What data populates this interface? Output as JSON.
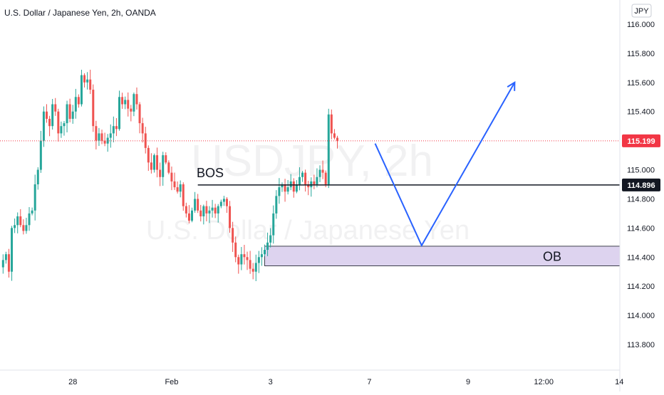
{
  "chart_data": {
    "type": "candlestick",
    "title": "U.S. Dollar / Japanese Yen, 2h, OANDA",
    "currency_badge": "JPY",
    "watermark": {
      "symbol": "USDJPY, 2h",
      "description": "U.S. Dollar / Japanese Yen"
    },
    "ylim": [
      113.6,
      116.1
    ],
    "y_ticks": [
      116.0,
      115.8,
      115.6,
      115.4,
      115.2,
      115.0,
      114.8,
      114.6,
      114.4,
      114.2,
      114.0,
      113.8
    ],
    "y_tick_labels": [
      "116.000",
      "115.800",
      "115.600",
      "115.400",
      "115.200",
      "115.000",
      "114.800",
      "114.600",
      "114.400",
      "114.200",
      "114.000",
      "113.800"
    ],
    "x_tick_labels": [
      {
        "label": "28",
        "bar": 24
      },
      {
        "label": "Feb",
        "bar": 58
      },
      {
        "label": "3",
        "bar": 92
      },
      {
        "label": "7",
        "bar": 126
      },
      {
        "label": "9",
        "bar": 160
      },
      {
        "label": "12:00",
        "bar": 186
      },
      {
        "label": "14",
        "bar": 212
      }
    ],
    "current_price": {
      "value": 115.199,
      "label": "115.199",
      "color": "#f23645"
    },
    "bos_level": {
      "value": 114.896,
      "label": "114.896",
      "text": "BOS",
      "from_bar": 67
    },
    "order_block": {
      "low": 114.34,
      "high": 114.475,
      "from_bar": 90,
      "text": "OB",
      "color": "#d1c4e9"
    },
    "projection": {
      "color": "#2962ff",
      "points": [
        [
          128,
          115.18
        ],
        [
          144,
          114.48
        ],
        [
          176,
          115.6
        ]
      ]
    },
    "colors": {
      "up": "#26a69a",
      "down": "#ef5350"
    },
    "close_series": [
      114.38,
      114.42,
      114.3,
      114.6,
      114.62,
      114.68,
      114.62,
      114.58,
      114.62,
      114.7,
      114.72,
      114.9,
      115.0,
      115.2,
      115.4,
      115.35,
      115.3,
      115.45,
      115.4,
      115.25,
      115.3,
      115.32,
      115.45,
      115.35,
      115.4,
      115.5,
      115.45,
      115.65,
      115.6,
      115.62,
      115.55,
      115.3,
      115.2,
      115.25,
      115.2,
      115.18,
      115.22,
      115.25,
      115.3,
      115.28,
      115.5,
      115.45,
      115.48,
      115.42,
      115.4,
      115.52,
      115.45,
      115.32,
      115.25,
      115.15,
      115.05,
      115.0,
      115.1,
      115.0,
      114.95,
      115.1,
      115.05,
      114.98,
      114.92,
      114.88,
      114.85,
      114.9,
      114.75,
      114.7,
      114.65,
      114.72,
      114.8,
      114.72,
      114.68,
      114.75,
      114.7,
      114.72,
      114.74,
      114.7,
      114.75,
      114.78,
      114.8,
      114.75,
      114.6,
      114.5,
      114.4,
      114.35,
      114.42,
      114.4,
      114.38,
      114.32,
      114.3,
      114.36,
      114.4,
      114.42,
      114.45,
      114.5,
      114.55,
      114.7,
      114.82,
      114.88,
      114.9,
      114.85,
      114.88,
      114.92,
      114.85,
      114.9,
      114.95,
      114.98,
      114.9,
      114.88,
      114.92,
      114.9,
      114.95,
      115.0,
      114.98,
      114.9,
      115.38,
      115.25,
      115.22,
      115.2
    ]
  }
}
